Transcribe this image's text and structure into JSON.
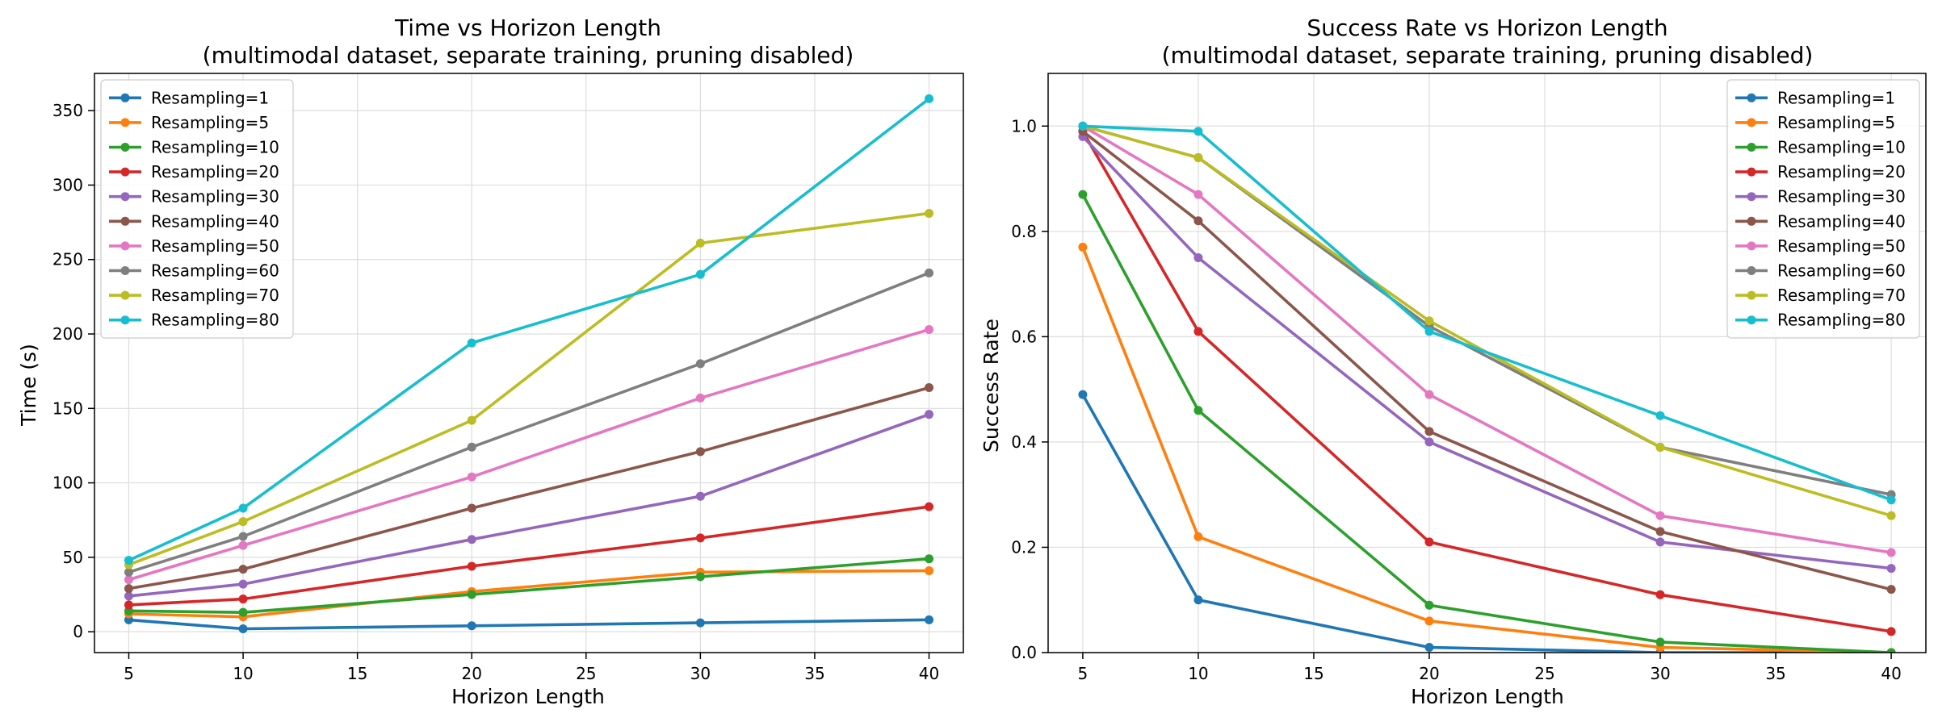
{
  "chart_data": [
    {
      "type": "line",
      "title": "Time vs Horizon Length",
      "subtitle": "(multimodal dataset, separate training, pruning disabled)",
      "xlabel": "Horizon Length",
      "ylabel": "Time (s)",
      "xlim": [
        3.5,
        41.5
      ],
      "ylim": [
        -14,
        375
      ],
      "xticks": [
        5,
        10,
        15,
        20,
        25,
        30,
        35,
        40
      ],
      "yticks": [
        0,
        50,
        100,
        150,
        200,
        250,
        300,
        350
      ],
      "ytick_decimals": 0,
      "grid": true,
      "legend_position": "top-left",
      "x": [
        5,
        10,
        20,
        30,
        40
      ],
      "series": [
        {
          "name": "Resampling=1",
          "color": "#1f77b4",
          "values": [
            8,
            2,
            4,
            6,
            8
          ]
        },
        {
          "name": "Resampling=5",
          "color": "#ff7f0e",
          "values": [
            12,
            10,
            27,
            40,
            41
          ]
        },
        {
          "name": "Resampling=10",
          "color": "#2ca02c",
          "values": [
            14,
            13,
            25,
            37,
            49
          ]
        },
        {
          "name": "Resampling=20",
          "color": "#d62728",
          "values": [
            18,
            22,
            44,
            63,
            84
          ]
        },
        {
          "name": "Resampling=30",
          "color": "#9467bd",
          "values": [
            24,
            32,
            62,
            91,
            146
          ]
        },
        {
          "name": "Resampling=40",
          "color": "#8c564b",
          "values": [
            29,
            42,
            83,
            121,
            164
          ]
        },
        {
          "name": "Resampling=50",
          "color": "#e377c2",
          "values": [
            35,
            58,
            104,
            157,
            203
          ]
        },
        {
          "name": "Resampling=60",
          "color": "#7f7f7f",
          "values": [
            40,
            64,
            124,
            180,
            241
          ]
        },
        {
          "name": "Resampling=70",
          "color": "#bcbd22",
          "values": [
            45,
            74,
            142,
            261,
            281
          ]
        },
        {
          "name": "Resampling=80",
          "color": "#17becf",
          "values": [
            48,
            83,
            194,
            240,
            358
          ]
        }
      ]
    },
    {
      "type": "line",
      "title": "Success Rate vs Horizon Length",
      "subtitle": "(multimodal dataset, separate training, pruning disabled)",
      "xlabel": "Horizon Length",
      "ylabel": "Success Rate",
      "xlim": [
        3.5,
        41.5
      ],
      "ylim": [
        0,
        1.1
      ],
      "xticks": [
        5,
        10,
        15,
        20,
        25,
        30,
        35,
        40
      ],
      "yticks": [
        0.0,
        0.2,
        0.4,
        0.6,
        0.8,
        1.0
      ],
      "ytick_decimals": 1,
      "grid": true,
      "legend_position": "top-right",
      "x": [
        5,
        10,
        20,
        30,
        40
      ],
      "series": [
        {
          "name": "Resampling=1",
          "color": "#1f77b4",
          "values": [
            0.49,
            0.1,
            0.01,
            0.0,
            0.0
          ]
        },
        {
          "name": "Resampling=5",
          "color": "#ff7f0e",
          "values": [
            0.77,
            0.22,
            0.06,
            0.01,
            0.0
          ]
        },
        {
          "name": "Resampling=10",
          "color": "#2ca02c",
          "values": [
            0.87,
            0.46,
            0.09,
            0.02,
            0.0
          ]
        },
        {
          "name": "Resampling=20",
          "color": "#d62728",
          "values": [
            0.99,
            0.61,
            0.21,
            0.11,
            0.04
          ]
        },
        {
          "name": "Resampling=30",
          "color": "#9467bd",
          "values": [
            0.98,
            0.75,
            0.4,
            0.21,
            0.16
          ]
        },
        {
          "name": "Resampling=40",
          "color": "#8c564b",
          "values": [
            0.99,
            0.82,
            0.42,
            0.23,
            0.12
          ]
        },
        {
          "name": "Resampling=50",
          "color": "#e377c2",
          "values": [
            1.0,
            0.87,
            0.49,
            0.26,
            0.19
          ]
        },
        {
          "name": "Resampling=60",
          "color": "#7f7f7f",
          "values": [
            1.0,
            0.94,
            0.62,
            0.39,
            0.3
          ]
        },
        {
          "name": "Resampling=70",
          "color": "#bcbd22",
          "values": [
            1.0,
            0.94,
            0.63,
            0.39,
            0.26
          ]
        },
        {
          "name": "Resampling=80",
          "color": "#17becf",
          "values": [
            1.0,
            0.99,
            0.61,
            0.45,
            0.29
          ]
        }
      ]
    }
  ]
}
